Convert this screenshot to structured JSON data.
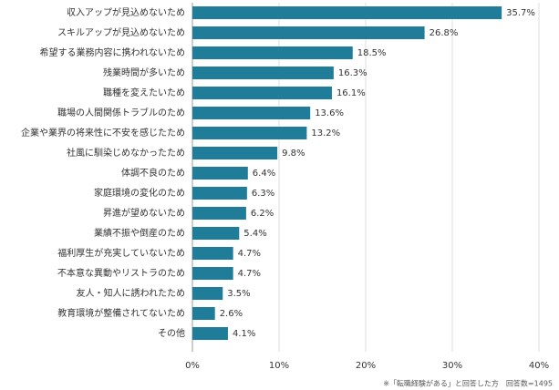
{
  "chart_data": {
    "type": "barh",
    "categories": [
      "収入アップが見込めないため",
      "スキルアップが見込めないため",
      "希望する業務内容に携われないため",
      "残業時間が多いため",
      "職種を変えたいため",
      "職場の人間関係トラブルのため",
      "企業や業界の将来性に不安を感じたため",
      "社風に馴染じめなかったため",
      "体調不良のため",
      "家庭環境の変化のため",
      "昇進が望めないため",
      "業績不振や倒産のため",
      "福利厚生が充実していないため",
      "不本意な異動やリストラのため",
      "友人・知人に誘われたため",
      "教育環境が整備されてないため",
      "その他"
    ],
    "values": [
      35.7,
      26.8,
      18.5,
      16.3,
      16.1,
      13.6,
      13.2,
      9.8,
      6.4,
      6.3,
      6.2,
      5.4,
      4.7,
      4.7,
      3.5,
      2.6,
      4.1
    ],
    "value_labels": [
      "35.7%",
      "26.8%",
      "18.5%",
      "16.3%",
      "16.1%",
      "13.6%",
      "13.2%",
      "9.8%",
      "6.4%",
      "6.3%",
      "6.2%",
      "5.4%",
      "4.7%",
      "4.7%",
      "3.5%",
      "2.6%",
      "4.1%"
    ],
    "color": "#1f7d99",
    "xlim": [
      0,
      40
    ],
    "xticks": [
      {
        "value": 0,
        "label": "0%"
      },
      {
        "value": 10,
        "label": "10%"
      },
      {
        "value": 20,
        "label": "20%"
      },
      {
        "value": 30,
        "label": "30%"
      },
      {
        "value": 40,
        "label": "40%"
      }
    ],
    "grid": true,
    "note": "※「転職経験がある」と回答した方　回答数=1495"
  }
}
